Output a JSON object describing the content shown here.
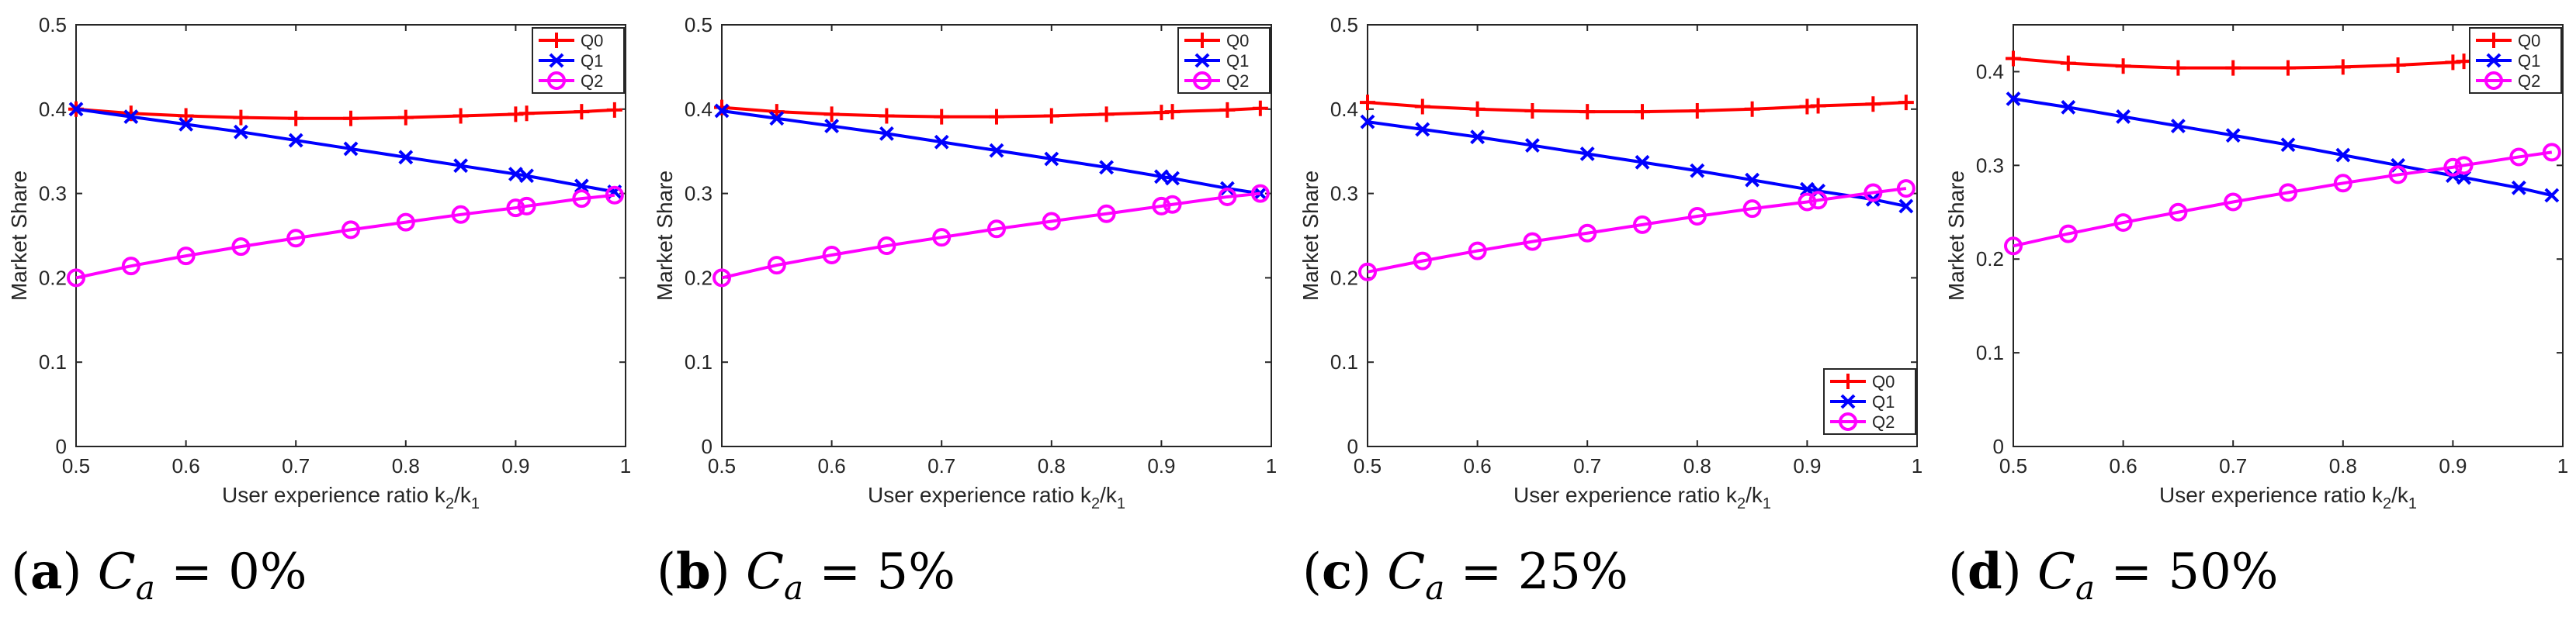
{
  "colors": {
    "Q0": "#ff0000",
    "Q1": "#0000ff",
    "Q2": "#ff00ff",
    "axis": "#262626"
  },
  "chart_data": [
    {
      "type": "line",
      "caption": {
        "letter": "a",
        "variable": "C",
        "subscript": "a",
        "equals": "=",
        "value": "0%"
      },
      "xlabel": "User experience ratio k",
      "xlabel_sub1": "2",
      "xlabel_sep": "/k",
      "xlabel_sub2": "1",
      "ylabel": "Market Share",
      "xlim": [
        0.5,
        1
      ],
      "ylim": [
        0,
        0.5
      ],
      "xticks": [
        "0.5",
        "0.6",
        "0.7",
        "0.8",
        "0.9",
        "1"
      ],
      "yticks": [
        "0",
        "0.1",
        "0.2",
        "0.3",
        "0.4",
        "0.5"
      ],
      "legend_position": "top-right",
      "x": [
        0.5,
        0.55,
        0.6,
        0.65,
        0.7,
        0.75,
        0.8,
        0.85,
        0.9,
        0.91,
        0.96,
        0.99
      ],
      "series": [
        {
          "name": "Q0",
          "marker": "plus",
          "values": [
            0.4,
            0.395,
            0.392,
            0.39,
            0.389,
            0.389,
            0.39,
            0.392,
            0.394,
            0.395,
            0.397,
            0.399
          ]
        },
        {
          "name": "Q1",
          "marker": "x",
          "values": [
            0.4,
            0.391,
            0.382,
            0.373,
            0.363,
            0.353,
            0.343,
            0.333,
            0.323,
            0.321,
            0.309,
            0.302
          ]
        },
        {
          "name": "Q2",
          "marker": "circle",
          "values": [
            0.2,
            0.214,
            0.226,
            0.237,
            0.247,
            0.257,
            0.266,
            0.275,
            0.283,
            0.285,
            0.294,
            0.298
          ]
        }
      ]
    },
    {
      "type": "line",
      "caption": {
        "letter": "b",
        "variable": "C",
        "subscript": "a",
        "equals": "=",
        "value": "5%"
      },
      "xlabel": "User experience ratio k",
      "xlabel_sub1": "2",
      "xlabel_sep": "/k",
      "xlabel_sub2": "1",
      "ylabel": "Market Share",
      "xlim": [
        0.5,
        1
      ],
      "ylim": [
        0,
        0.5
      ],
      "xticks": [
        "0.5",
        "0.6",
        "0.7",
        "0.8",
        "0.9",
        "1"
      ],
      "yticks": [
        "0",
        "0.1",
        "0.2",
        "0.3",
        "0.4",
        "0.5"
      ],
      "legend_position": "top-right",
      "x": [
        0.5,
        0.55,
        0.6,
        0.65,
        0.7,
        0.75,
        0.8,
        0.85,
        0.9,
        0.91,
        0.96,
        0.99
      ],
      "series": [
        {
          "name": "Q0",
          "marker": "plus",
          "values": [
            0.402,
            0.397,
            0.394,
            0.392,
            0.391,
            0.391,
            0.392,
            0.394,
            0.396,
            0.397,
            0.399,
            0.401
          ]
        },
        {
          "name": "Q1",
          "marker": "x",
          "values": [
            0.398,
            0.389,
            0.38,
            0.371,
            0.361,
            0.351,
            0.341,
            0.331,
            0.32,
            0.318,
            0.306,
            0.3
          ]
        },
        {
          "name": "Q2",
          "marker": "circle",
          "values": [
            0.2,
            0.215,
            0.227,
            0.238,
            0.248,
            0.258,
            0.267,
            0.276,
            0.285,
            0.287,
            0.296,
            0.3
          ]
        }
      ]
    },
    {
      "type": "line",
      "caption": {
        "letter": "c",
        "variable": "C",
        "subscript": "a",
        "equals": "=",
        "value": "25%"
      },
      "xlabel": "User experience ratio k",
      "xlabel_sub1": "2",
      "xlabel_sep": "/k",
      "xlabel_sub2": "1",
      "ylabel": "Market Share",
      "xlim": [
        0.5,
        1
      ],
      "ylim": [
        0,
        0.5
      ],
      "xticks": [
        "0.5",
        "0.6",
        "0.7",
        "0.8",
        "0.9",
        "1"
      ],
      "yticks": [
        "0",
        "0.1",
        "0.2",
        "0.3",
        "0.4",
        "0.5"
      ],
      "legend_position": "bottom-right",
      "x": [
        0.5,
        0.55,
        0.6,
        0.65,
        0.7,
        0.75,
        0.8,
        0.85,
        0.9,
        0.91,
        0.96,
        0.99
      ],
      "series": [
        {
          "name": "Q0",
          "marker": "plus",
          "values": [
            0.408,
            0.403,
            0.4,
            0.398,
            0.397,
            0.397,
            0.398,
            0.4,
            0.403,
            0.404,
            0.406,
            0.408
          ]
        },
        {
          "name": "Q1",
          "marker": "x",
          "values": [
            0.385,
            0.376,
            0.367,
            0.357,
            0.347,
            0.337,
            0.327,
            0.316,
            0.305,
            0.303,
            0.293,
            0.285
          ]
        },
        {
          "name": "Q2",
          "marker": "circle",
          "values": [
            0.207,
            0.22,
            0.232,
            0.243,
            0.253,
            0.263,
            0.273,
            0.282,
            0.29,
            0.292,
            0.301,
            0.306
          ]
        }
      ]
    },
    {
      "type": "line",
      "caption": {
        "letter": "d",
        "variable": "C",
        "subscript": "a",
        "equals": "=",
        "value": "50%"
      },
      "xlabel": "User experience ratio k",
      "xlabel_sub1": "2",
      "xlabel_sep": "/k",
      "xlabel_sub2": "1",
      "ylabel": "Market Share",
      "xlim": [
        0.5,
        1
      ],
      "ylim": [
        0,
        0.45
      ],
      "xticks": [
        "0.5",
        "0.6",
        "0.7",
        "0.8",
        "0.9",
        "1"
      ],
      "yticks": [
        "0",
        "0.1",
        "0.2",
        "0.3",
        "0.4"
      ],
      "legend_position": "top-right",
      "x": [
        0.5,
        0.55,
        0.6,
        0.65,
        0.7,
        0.75,
        0.8,
        0.85,
        0.9,
        0.91,
        0.96,
        0.99
      ],
      "series": [
        {
          "name": "Q0",
          "marker": "plus",
          "values": [
            0.414,
            0.409,
            0.406,
            0.404,
            0.404,
            0.404,
            0.405,
            0.407,
            0.41,
            0.411,
            0.413,
            0.415
          ]
        },
        {
          "name": "Q1",
          "marker": "x",
          "values": [
            0.371,
            0.362,
            0.352,
            0.342,
            0.332,
            0.322,
            0.311,
            0.3,
            0.289,
            0.287,
            0.276,
            0.268
          ]
        },
        {
          "name": "Q2",
          "marker": "circle",
          "values": [
            0.214,
            0.227,
            0.239,
            0.25,
            0.261,
            0.271,
            0.281,
            0.29,
            0.298,
            0.3,
            0.309,
            0.314
          ]
        }
      ]
    }
  ]
}
